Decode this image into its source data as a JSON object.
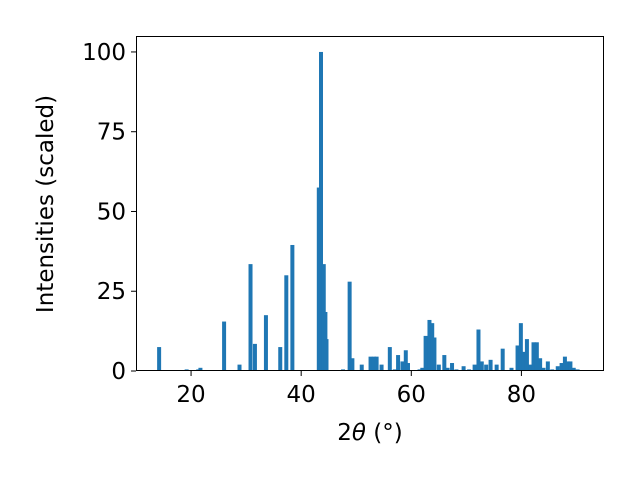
{
  "chart_data": {
    "type": "bar",
    "title": "",
    "xlabel": "2θ (°)",
    "xlabel_main": "2",
    "xlabel_theta": "θ",
    "xlabel_unit": " (°)",
    "ylabel": "Intensities (scaled)",
    "xlim": [
      10,
      95
    ],
    "ylim": [
      0,
      105
    ],
    "xticks": [
      20,
      40,
      60,
      80
    ],
    "yticks": [
      0,
      25,
      50,
      75,
      100
    ],
    "xtick_labels": [
      "20",
      "40",
      "60",
      "80"
    ],
    "ytick_labels": [
      "0",
      "25",
      "50",
      "75",
      "100"
    ],
    "bar_color": "#1f77b4",
    "grid": false,
    "series": [
      {
        "x": [
          14.2,
          19.2,
          21.3,
          21.7,
          26.0,
          28.8,
          30.8,
          31.6,
          33.6,
          36.2,
          37.3,
          38.4,
          43.2,
          43.6,
          44.1,
          44.4,
          44.6,
          47.6,
          48.8,
          49.3,
          51.0,
          52.6,
          53.2,
          53.7,
          54.6,
          56.1,
          57.0,
          57.6,
          58.4,
          59.0,
          59.4,
          61.5,
          62.0,
          62.6,
          63.3,
          63.8,
          64.2,
          65.0,
          66.0,
          66.6,
          67.4,
          68.2,
          69.5,
          70.5,
          71.5,
          72.2,
          72.8,
          73.6,
          74.4,
          75.5,
          76.6,
          78.2,
          79.3,
          79.9,
          80.4,
          81.0,
          81.6,
          82.2,
          82.8,
          83.4,
          84.0,
          84.8,
          85.6,
          86.6,
          87.3,
          87.9,
          88.4,
          88.9,
          89.5,
          90.2
        ],
        "values": [
          7.5,
          0.5,
          0.5,
          1.0,
          15.5,
          2.0,
          33.5,
          8.5,
          17.5,
          7.5,
          30.0,
          39.5,
          57.5,
          100.0,
          33.5,
          18.5,
          10.0,
          0.5,
          28.0,
          4.0,
          2.0,
          4.5,
          4.5,
          4.5,
          2.0,
          7.5,
          0.5,
          5.0,
          3.0,
          6.5,
          2.5,
          0.5,
          1.0,
          11.0,
          16.0,
          15.0,
          10.5,
          2.0,
          5.0,
          1.0,
          2.5,
          0.5,
          1.5,
          0.5,
          2.0,
          13.0,
          3.0,
          2.0,
          3.5,
          2.0,
          7.0,
          1.0,
          8.0,
          15.0,
          6.0,
          10.0,
          2.0,
          9.0,
          9.0,
          4.0,
          1.0,
          3.0,
          0.5,
          1.5,
          2.5,
          4.5,
          3.0,
          3.0,
          1.0,
          0.5
        ]
      }
    ]
  }
}
